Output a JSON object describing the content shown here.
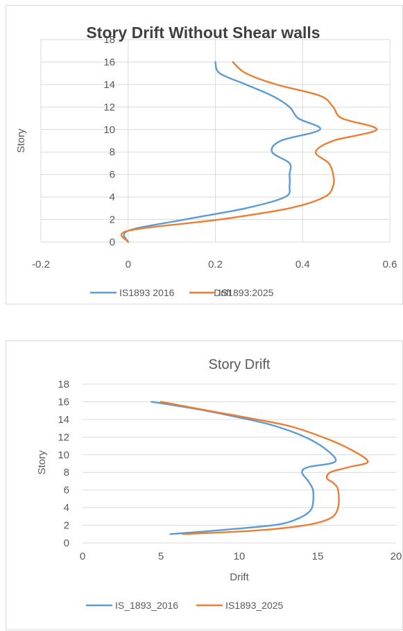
{
  "chart_data": [
    {
      "type": "line",
      "title": "Story Drift Without Shear walls",
      "xlabel": "Drift",
      "ylabel": "Story",
      "xlim": [
        -0.2,
        0.6
      ],
      "ylim": [
        0,
        18
      ],
      "xticks": [
        -0.2,
        0,
        0.2,
        0.4,
        0.6
      ],
      "xtick_labels": [
        "-0.2",
        "0",
        "0.2",
        "0.4",
        "0.6"
      ],
      "yticks": [
        0,
        2,
        4,
        6,
        8,
        10,
        12,
        14,
        16,
        18
      ],
      "ytick_labels": [
        "0",
        "2",
        "4",
        "6",
        "8",
        "10",
        "12",
        "14",
        "16",
        "18"
      ],
      "grid": true,
      "legend_position": "bottom",
      "series": [
        {
          "name": "IS1893 2016",
          "color": "#5b9bd5",
          "points": [
            [
              0,
              0
            ],
            [
              0,
              1
            ],
            [
              0.13,
              2
            ],
            [
              0.27,
              3
            ],
            [
              0.36,
              4
            ],
            [
              0.37,
              5
            ],
            [
              0.37,
              6
            ],
            [
              0.37,
              7
            ],
            [
              0.33,
              8
            ],
            [
              0.35,
              9
            ],
            [
              0.44,
              10
            ],
            [
              0.39,
              11
            ],
            [
              0.37,
              12
            ],
            [
              0.33,
              13
            ],
            [
              0.27,
              14
            ],
            [
              0.21,
              15
            ],
            [
              0.2,
              16
            ]
          ]
        },
        {
          "name": "IS1893:2025",
          "color": "#ed7d31",
          "points": [
            [
              0,
              0
            ],
            [
              0,
              1
            ],
            [
              0.21,
              2
            ],
            [
              0.37,
              3
            ],
            [
              0.45,
              4
            ],
            [
              0.47,
              5
            ],
            [
              0.47,
              6
            ],
            [
              0.46,
              7
            ],
            [
              0.43,
              8
            ],
            [
              0.47,
              9
            ],
            [
              0.57,
              10
            ],
            [
              0.49,
              11
            ],
            [
              0.47,
              12
            ],
            [
              0.44,
              13
            ],
            [
              0.34,
              14
            ],
            [
              0.27,
              15
            ],
            [
              0.24,
              16
            ]
          ]
        }
      ]
    },
    {
      "type": "line",
      "title": "Story Drift",
      "xlabel": "Drift",
      "ylabel": "Story",
      "xlim": [
        0,
        20
      ],
      "ylim": [
        0,
        18
      ],
      "xticks": [
        0,
        5,
        10,
        15,
        20
      ],
      "xtick_labels": [
        "0",
        "5",
        "10",
        "15",
        "20"
      ],
      "yticks": [
        0,
        2,
        4,
        6,
        8,
        10,
        12,
        14,
        16,
        18
      ],
      "ytick_labels": [
        "0",
        "2",
        "4",
        "6",
        "8",
        "10",
        "12",
        "14",
        "16",
        "18"
      ],
      "grid": true,
      "legend_position": "bottom",
      "series": [
        {
          "name": "IS_1893_2016",
          "color": "#5b9bd5",
          "points": [
            [
              5.6,
              1
            ],
            [
              9.8,
              1.6
            ],
            [
              12.5,
              2.1
            ],
            [
              13.8,
              2.8
            ],
            [
              14.5,
              3.6
            ],
            [
              14.7,
              4.5
            ],
            [
              14.7,
              6
            ],
            [
              14.4,
              7
            ],
            [
              14,
              8
            ],
            [
              14.4,
              8.6
            ],
            [
              16.1,
              9.2
            ],
            [
              15.6,
              10.5
            ],
            [
              14.2,
              12
            ],
            [
              12,
              13.4
            ],
            [
              9.5,
              14.4
            ],
            [
              7.2,
              15.2
            ],
            [
              4.4,
              16
            ]
          ]
        },
        {
          "name": "IS1893_2025",
          "color": "#ed7d31",
          "points": [
            [
              6.4,
              1
            ],
            [
              11,
              1.4
            ],
            [
              14.2,
              2
            ],
            [
              15.8,
              2.8
            ],
            [
              16.3,
              4
            ],
            [
              16.3,
              6
            ],
            [
              16,
              6.8
            ],
            [
              15.6,
              7.3
            ],
            [
              15.8,
              8
            ],
            [
              17,
              8.6
            ],
            [
              18.2,
              9.2
            ],
            [
              17.2,
              10.5
            ],
            [
              15.6,
              11.8
            ],
            [
              13.3,
              13.2
            ],
            [
              10.5,
              14.2
            ],
            [
              8,
              15
            ],
            [
              5,
              16
            ]
          ]
        }
      ]
    }
  ]
}
